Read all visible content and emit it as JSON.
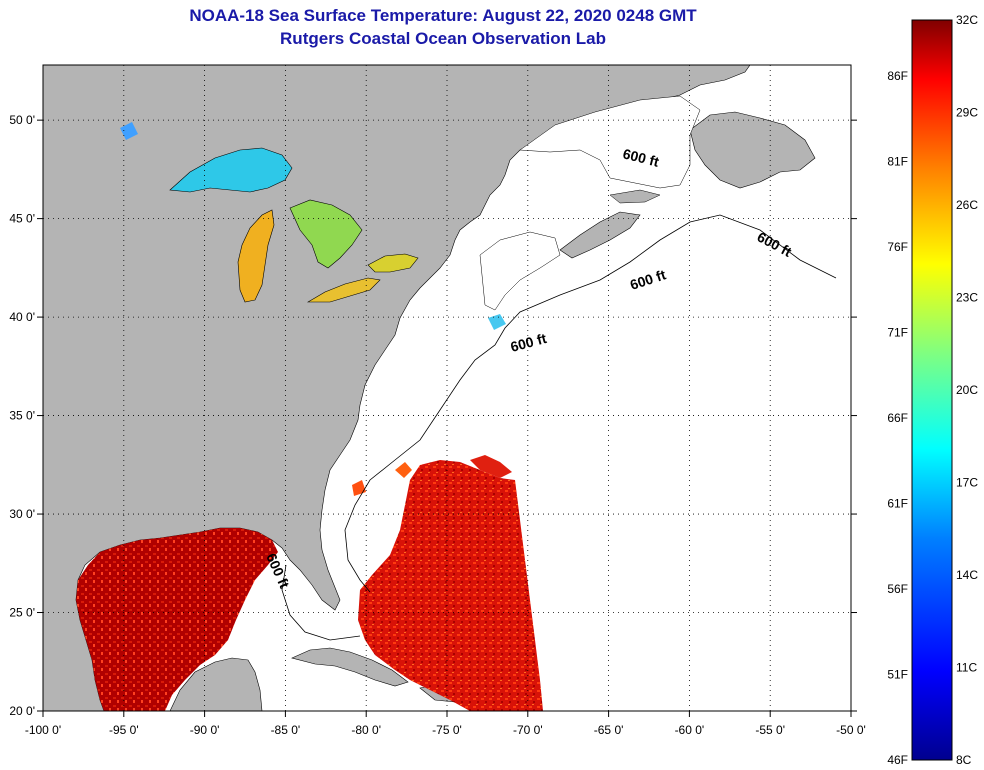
{
  "header": {
    "title": "NOAA-18 Sea Surface Temperature:  August 22, 2020 0248 GMT",
    "subtitle": "Rutgers Coastal Ocean Observation Lab"
  },
  "map": {
    "lon_labels": [
      "-100 0'",
      "-95 0'",
      "-90 0'",
      "-85 0'",
      "-80 0'",
      "-75 0'",
      "-70 0'",
      "-65 0'",
      "-60 0'",
      "-55 0'",
      "-50 0'"
    ],
    "lat_labels": [
      "50 0'",
      "45 0'",
      "40 0'",
      "35 0'",
      "30 0'",
      "25 0'",
      "20 0'"
    ],
    "isobath_labels": [
      "600 ft",
      "600 ft",
      "600 ft",
      "600 ft",
      "600 ft"
    ],
    "colors": {
      "land": "#b4b4b4",
      "ocean": "#ffffff",
      "grid": "#000000"
    }
  },
  "colorbar": {
    "celsius_labels": [
      "32C",
      "29C",
      "26C",
      "23C",
      "20C",
      "17C",
      "14C",
      "11C",
      "8C"
    ],
    "fahrenheit_labels": [
      "86F",
      "81F",
      "76F",
      "71F",
      "66F",
      "61F",
      "56F",
      "51F",
      "46F"
    ],
    "range_c": [
      8,
      32
    ],
    "colors": [
      "#00008f",
      "#0000ff",
      "#0080ff",
      "#00ffff",
      "#80ff80",
      "#ffff00",
      "#ff8000",
      "#ff0000",
      "#800000"
    ]
  }
}
